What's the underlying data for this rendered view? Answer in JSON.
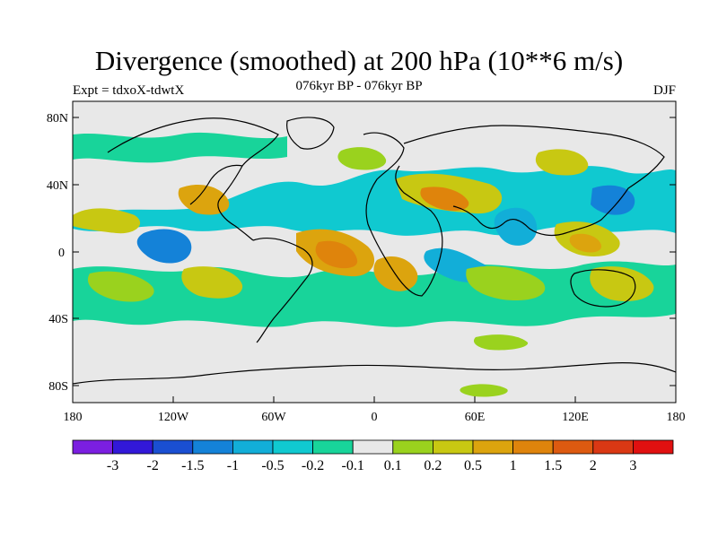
{
  "header": {
    "title": "Divergence (smoothed) at 200 hPa (10**6 m/s)",
    "expt": "Expt = tdxoX-tdwtX",
    "period": "076kyr BP - 076kyr BP",
    "season": "DJF"
  },
  "map": {
    "projection": "cylindrical equidistant",
    "lon_range": [
      -180,
      180
    ],
    "lat_range": [
      -90,
      90
    ],
    "y_tick_labels": [
      "80N",
      "40N",
      "0",
      "40S",
      "80S"
    ],
    "x_tick_labels": [
      "180",
      "120W",
      "60W",
      "0",
      "60E",
      "120E",
      "180"
    ],
    "background_color": "#e8e8e8",
    "coastline_color": "#000000"
  },
  "colorbar": {
    "labels": [
      "-3",
      "-2",
      "-1.5",
      "-1",
      "-0.5",
      "-0.2",
      "-0.1",
      "0.1",
      "0.2",
      "0.5",
      "1",
      "1.5",
      "2",
      "3"
    ],
    "colors": [
      "#7b1fe0",
      "#3218d8",
      "#1a4fd2",
      "#1482d8",
      "#12aed8",
      "#10c9d0",
      "#18d49a",
      "#e8e8e8",
      "#9ad21e",
      "#c8c812",
      "#dca40e",
      "#df840c",
      "#dd5a10",
      "#da3814",
      "#e01010"
    ]
  }
}
